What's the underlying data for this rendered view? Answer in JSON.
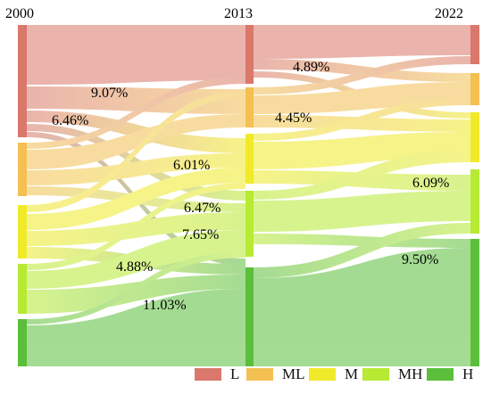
{
  "years": [
    "2000",
    "2013",
    "2022"
  ],
  "categories": [
    {
      "name": "L",
      "color": "#d9786b"
    },
    {
      "name": "ML",
      "color": "#f3c051"
    },
    {
      "name": "M",
      "color": "#f0ea2a"
    },
    {
      "name": "MH",
      "color": "#b7ea33"
    },
    {
      "name": "H",
      "color": "#5bbf3b"
    }
  ],
  "flow_labels": [
    "9.07%",
    "6.46%",
    "6.01%",
    "6.47%",
    "7.65%",
    "4.88%",
    "11.03%",
    "4.89%",
    "4.45%",
    "6.09%",
    "9.50%"
  ]
}
